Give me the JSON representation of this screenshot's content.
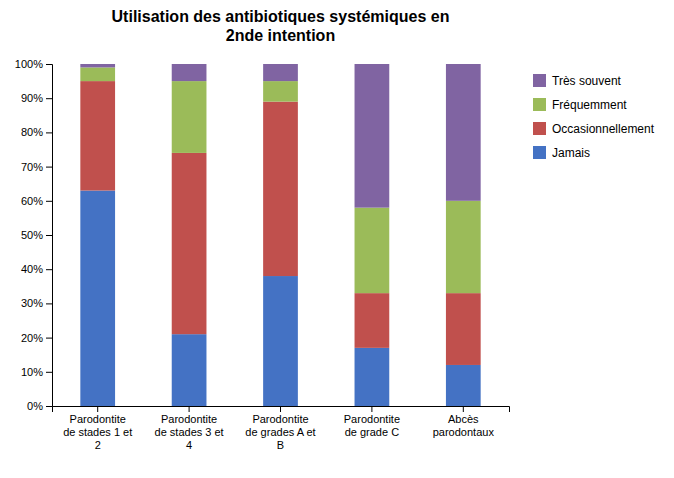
{
  "chart_data": {
    "type": "bar",
    "title": "Utilisation des antibiotiques systémiques en\n2nde intention",
    "categories": [
      "Parodontite\nde stades 1 et\n2",
      "Parodontite\nde stades 3 et\n4",
      "Parodontite\nde grades A et\nB",
      "Parodontite\nde grade C",
      "Abcès\nparodontaux"
    ],
    "series": [
      {
        "name": "Jamais",
        "color": "#4472C4",
        "values": [
          63,
          21,
          38,
          17,
          12
        ]
      },
      {
        "name": "Occasionnellement",
        "color": "#C0504D",
        "values": [
          32,
          53,
          51,
          16,
          21
        ]
      },
      {
        "name": "Fréquemment",
        "color": "#9BBB59",
        "values": [
          4,
          21,
          6,
          25,
          27
        ]
      },
      {
        "name": "Très souvent",
        "color": "#8064A2",
        "values": [
          1,
          5,
          5,
          42,
          40
        ]
      }
    ],
    "stacked": true,
    "ylim": [
      0,
      100
    ],
    "yticks": [
      {
        "value": 0,
        "label": "0%"
      },
      {
        "value": 10,
        "label": "10%"
      },
      {
        "value": 20,
        "label": "20%"
      },
      {
        "value": 30,
        "label": "30%"
      },
      {
        "value": 40,
        "label": "40%"
      },
      {
        "value": 50,
        "label": "50%"
      },
      {
        "value": 60,
        "label": "60%"
      },
      {
        "value": 70,
        "label": "70%"
      },
      {
        "value": 80,
        "label": "80%"
      },
      {
        "value": 90,
        "label": "90%"
      },
      {
        "value": 100,
        "label": "100%"
      }
    ],
    "grid": false,
    "legend": "right"
  }
}
